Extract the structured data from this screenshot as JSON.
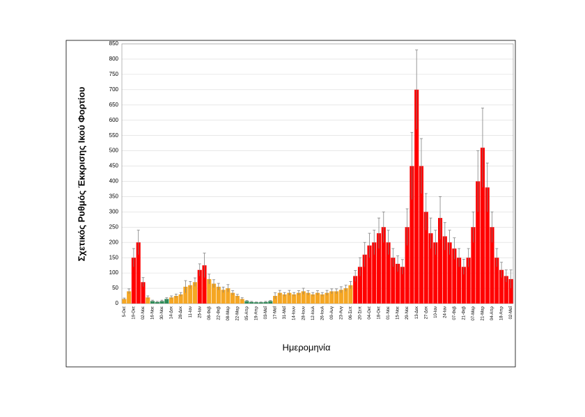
{
  "chart_data": {
    "type": "bar",
    "y_label": "Σχετικός Ρυθμός Έκκρισης Ικού Φορτίου",
    "x_label": "Ημερομηνία",
    "categories": [
      "5-Οκτ",
      null,
      "19-Οκτ",
      null,
      "02-Νοε",
      null,
      "16-Νοε",
      null,
      "30-Νοε",
      null,
      "14-Δεκ",
      null,
      "28-Δεκ",
      null,
      "11-Ιαν",
      null,
      "25-Ιαν",
      null,
      "08-Φεβ",
      null,
      "22-Φεβ",
      null,
      "08-Μαρ",
      null,
      "22-Μαρ",
      null,
      "05-Απρ",
      null,
      "19-Απρ",
      null,
      "03-Μαΐ",
      null,
      "17-Μαΐ",
      null,
      "31-Μαΐ",
      null,
      "14-Ιουν",
      null,
      "28-Ιουν",
      null,
      "12-Ιουλ",
      null,
      "26-Ιουλ",
      null,
      "09-Αυγ",
      null,
      "23-Αυγ",
      null,
      "06-Σεπ",
      null,
      "20-Σεπ",
      null,
      "04-Οκτ",
      null,
      "18-Οκτ",
      null,
      "01-Νοε",
      null,
      "15-Νοε",
      null,
      "29-Νοε",
      null,
      "13-Δεκ",
      null,
      "27-Δεκ",
      null,
      "10-Ιαν",
      null,
      "24-Ιαν",
      null,
      "07-Φεβ",
      null,
      "21-Φεβ",
      null,
      "07-Μαρ",
      null,
      "21-Μαρ",
      null,
      "04-Απρ",
      null,
      "18-Απρ",
      null,
      "02-Μαΐ"
    ],
    "values": [
      15,
      40,
      150,
      200,
      70,
      20,
      8,
      5,
      8,
      15,
      20,
      25,
      30,
      55,
      60,
      70,
      110,
      125,
      80,
      65,
      55,
      45,
      50,
      35,
      25,
      15,
      8,
      5,
      4,
      4,
      5,
      8,
      25,
      35,
      30,
      35,
      30,
      35,
      40,
      35,
      30,
      35,
      30,
      35,
      40,
      40,
      45,
      50,
      60,
      90,
      120,
      160,
      190,
      200,
      230,
      250,
      200,
      150,
      130,
      120,
      250,
      450,
      700,
      450,
      300,
      230,
      200,
      280,
      220,
      200,
      180,
      150,
      120,
      150,
      250,
      400,
      510,
      380,
      250,
      150,
      110,
      90,
      80
    ],
    "errors": [
      3,
      8,
      30,
      40,
      15,
      5,
      3,
      2,
      3,
      4,
      5,
      6,
      6,
      20,
      12,
      14,
      20,
      40,
      16,
      13,
      11,
      9,
      12,
      7,
      5,
      4,
      2,
      2,
      1,
      1,
      2,
      2,
      10,
      8,
      6,
      8,
      6,
      7,
      10,
      7,
      6,
      7,
      6,
      8,
      8,
      8,
      10,
      10,
      12,
      18,
      30,
      40,
      40,
      40,
      50,
      50,
      40,
      30,
      26,
      24,
      60,
      110,
      130,
      90,
      60,
      50,
      40,
      70,
      45,
      40,
      35,
      30,
      25,
      30,
      50,
      100,
      130,
      80,
      50,
      30,
      25,
      20,
      30
    ],
    "colors": [
      "#f5a623",
      "#f5a623",
      "#ff0000",
      "#ff0000",
      "#ff0000",
      "#f5a623",
      "#2e8b57",
      "#2e8b57",
      "#2e8b57",
      "#2e8b57",
      "#f5a623",
      "#f5a623",
      "#f5a623",
      "#f5a623",
      "#f5a623",
      "#f5a623",
      "#ff0000",
      "#ff0000",
      "#f5a623",
      "#f5a623",
      "#f5a623",
      "#f5a623",
      "#f5a623",
      "#f5a623",
      "#f5a623",
      "#f5a623",
      "#2e8b57",
      "#2e8b57",
      "#2e8b57",
      "#2e8b57",
      "#2e8b57",
      "#2e8b57",
      "#f5a623",
      "#f5a623",
      "#f5a623",
      "#f5a623",
      "#f5a623",
      "#f5a623",
      "#f5a623",
      "#f5a623",
      "#f5a623",
      "#f5a623",
      "#f5a623",
      "#f5a623",
      "#f5a623",
      "#f5a623",
      "#f5a623",
      "#f5a623",
      "#f5a623",
      "#ff0000",
      "#ff0000",
      "#ff0000",
      "#ff0000",
      "#ff0000",
      "#ff0000",
      "#ff0000",
      "#ff0000",
      "#ff0000",
      "#ff0000",
      "#ff0000",
      "#ff0000",
      "#ff0000",
      "#ff0000",
      "#ff0000",
      "#ff0000",
      "#ff0000",
      "#ff0000",
      "#ff0000",
      "#ff0000",
      "#ff0000",
      "#ff0000",
      "#ff0000",
      "#ff0000",
      "#ff0000",
      "#ff0000",
      "#ff0000",
      "#ff0000",
      "#ff0000",
      "#ff0000",
      "#ff0000",
      "#ff0000",
      "#ff0000",
      "#ff0000"
    ],
    "error_color": "#808080",
    "ylim": [
      0,
      850
    ],
    "yticks": [
      0,
      50,
      100,
      150,
      200,
      250,
      300,
      350,
      400,
      450,
      500,
      550,
      600,
      650,
      700,
      750,
      800,
      850
    ],
    "grid": true
  }
}
